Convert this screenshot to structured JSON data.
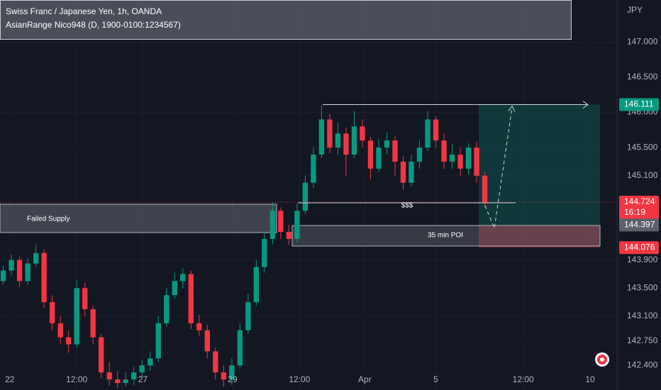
{
  "chart_data": {
    "type": "candlestick",
    "title": "Swiss Franc / Japanese Yen, 1h, OANDA",
    "subtitle": "AsianRange Nico948 (D, 1900-0100:1234567)",
    "y_axis_label": "JPY",
    "up_color": "#089981",
    "down_color": "#f23645",
    "open": [
      143.6,
      143.75,
      143.9,
      143.6,
      143.85,
      144.0,
      143.3,
      143.0,
      142.8,
      142.7,
      143.5,
      143.2,
      142.8,
      142.3,
      142.2,
      142.15,
      142.2,
      142.3,
      142.4,
      142.5,
      143.0,
      143.4,
      143.6,
      143.7,
      143.0,
      142.9,
      142.6,
      142.3,
      142.2,
      142.4,
      142.9,
      143.3,
      143.8,
      144.2,
      144.6,
      144.3,
      144.2,
      144.6,
      145.0,
      145.4,
      145.9,
      145.5,
      145.7,
      145.4,
      145.8,
      145.6,
      145.2,
      145.5,
      145.6,
      145.3,
      145.0,
      145.3,
      145.5,
      145.9,
      145.6,
      145.3,
      145.4,
      145.2,
      145.5,
      145.1
    ],
    "high": [
      143.82,
      143.98,
      143.95,
      143.92,
      144.12,
      144.05,
      143.4,
      143.1,
      142.9,
      143.62,
      143.58,
      143.25,
      142.85,
      142.45,
      142.32,
      142.3,
      142.38,
      142.48,
      142.6,
      143.1,
      143.5,
      143.72,
      143.78,
      143.75,
      143.12,
      142.98,
      142.65,
      142.4,
      142.5,
      143.0,
      143.42,
      143.9,
      144.3,
      144.72,
      144.65,
      144.4,
      144.7,
      145.1,
      145.5,
      146.1,
      145.98,
      145.85,
      145.78,
      146.02,
      145.9,
      145.65,
      145.62,
      145.72,
      145.66,
      145.38,
      145.4,
      145.6,
      146.02,
      145.95,
      145.7,
      145.55,
      145.5,
      145.56,
      145.58,
      145.15
    ],
    "low": [
      143.55,
      143.68,
      143.52,
      143.55,
      143.8,
      143.22,
      142.9,
      142.7,
      142.58,
      142.65,
      143.1,
      142.7,
      142.22,
      142.12,
      142.08,
      142.1,
      142.12,
      142.22,
      142.32,
      142.45,
      142.95,
      143.35,
      143.5,
      142.92,
      142.82,
      142.5,
      142.2,
      142.1,
      142.12,
      142.35,
      142.85,
      143.25,
      143.72,
      144.12,
      144.2,
      144.12,
      144.15,
      144.55,
      144.92,
      145.35,
      145.42,
      145.4,
      145.1,
      145.35,
      145.5,
      145.05,
      145.15,
      145.4,
      145.1,
      144.9,
      144.95,
      145.2,
      145.45,
      145.5,
      145.2,
      145.2,
      145.1,
      145.12,
      145.0,
      144.65
    ],
    "close": [
      143.75,
      143.9,
      143.6,
      143.85,
      144.0,
      143.3,
      143.0,
      142.8,
      142.7,
      143.5,
      143.2,
      142.8,
      142.3,
      142.2,
      142.15,
      142.2,
      142.3,
      142.4,
      142.5,
      143.0,
      143.4,
      143.6,
      143.7,
      143.0,
      142.9,
      142.6,
      142.3,
      142.2,
      142.4,
      142.9,
      143.3,
      143.8,
      144.2,
      144.6,
      144.3,
      144.2,
      144.6,
      145.0,
      145.4,
      145.9,
      145.5,
      145.7,
      145.4,
      145.8,
      145.6,
      145.2,
      145.5,
      145.6,
      145.3,
      145.0,
      145.3,
      145.5,
      145.9,
      145.6,
      145.3,
      145.4,
      145.2,
      145.5,
      145.1,
      144.72
    ],
    "xlim": [
      -0.4,
      75.2
    ],
    "xticks": [
      {
        "value": 0.8,
        "label": "22"
      },
      {
        "value": 9.0,
        "label": "12:00"
      },
      {
        "value": 17.1,
        "label": "27"
      },
      {
        "value": 28.1,
        "label": "29"
      },
      {
        "value": 36.3,
        "label": "12:00"
      },
      {
        "value": 44.3,
        "label": "Apr"
      },
      {
        "value": 53.0,
        "label": "5"
      },
      {
        "value": 63.7,
        "label": "12:00"
      },
      {
        "value": 71.9,
        "label": "10"
      }
    ],
    "ylim": [
      142.05,
      147.6
    ],
    "yticks": [
      {
        "value": 147.0,
        "label": "147.000"
      },
      {
        "value": 146.5,
        "label": "146.500"
      },
      {
        "value": 146.0,
        "label": "146.000"
      },
      {
        "value": 145.5,
        "label": "145.500"
      },
      {
        "value": 145.1,
        "label": "145.100"
      },
      {
        "value": 143.9,
        "label": "143.900"
      },
      {
        "value": 143.5,
        "label": "143.500"
      },
      {
        "value": 143.1,
        "label": "143.100"
      },
      {
        "value": 142.75,
        "label": "142.750"
      },
      {
        "value": 142.4,
        "label": "142.400"
      }
    ],
    "levels": {
      "target": {
        "value": 146.111,
        "label": "146.111"
      },
      "current": {
        "value": 144.724,
        "label": "144.724"
      },
      "entry": {
        "value": 144.397,
        "label": "144.397"
      },
      "stop": {
        "value": 144.076,
        "label": "144.076"
      }
    },
    "countdown": "16:19",
    "annotations": [
      "Failed Supply",
      "35 min POI",
      "$$$"
    ]
  }
}
